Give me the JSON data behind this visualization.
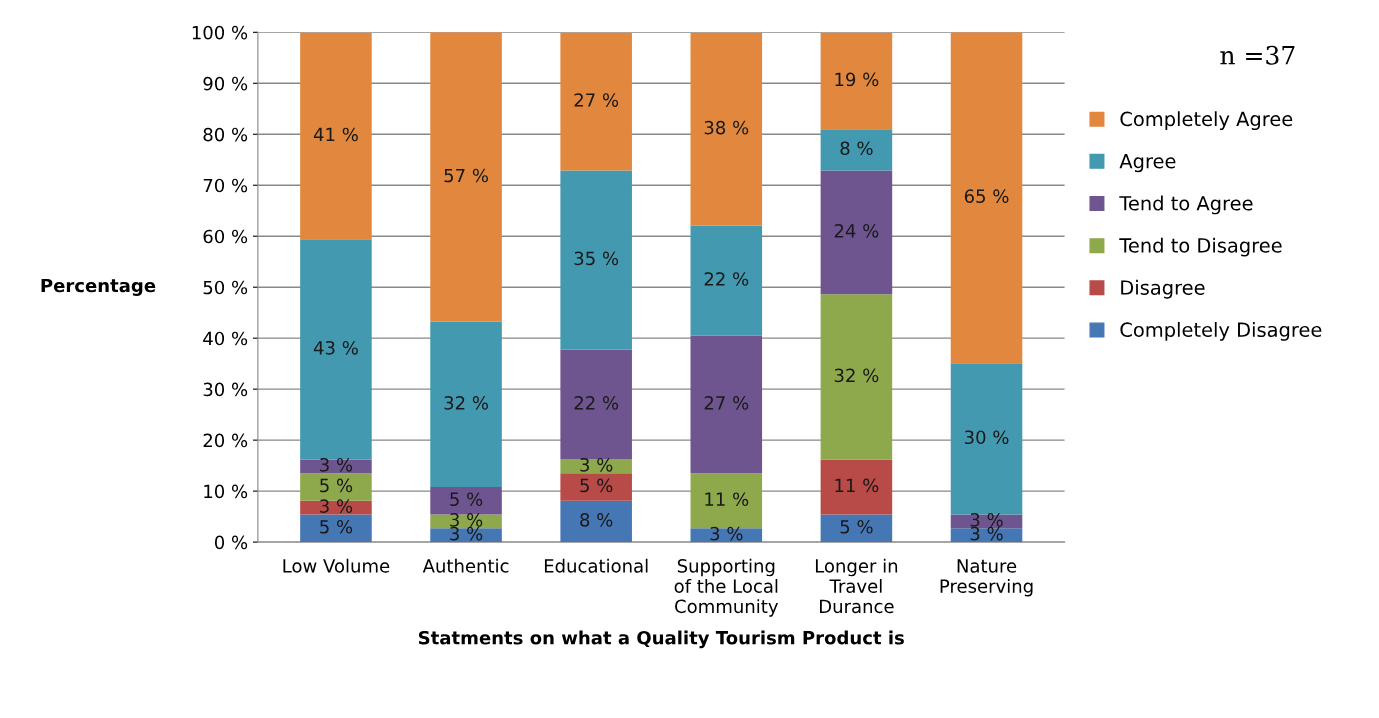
{
  "chart_data": {
    "type": "bar",
    "stacked": true,
    "xlabel": "Statments on what a Quality Tourism Product is",
    "ylabel": "Percentage",
    "categories": [
      "Low Volume",
      "Authentic",
      "Educational",
      "Supporting\nof the Local\nCommunity",
      "Longer in\nTravel\nDurance",
      "Nature\nPreserving"
    ],
    "series": [
      {
        "name": "Completely Disagree",
        "color": "#4677b5",
        "values": [
          5.4,
          2.7,
          8.1,
          2.7,
          5.4,
          2.7
        ],
        "value_labels": [
          "5 %",
          "3 %",
          "8 %",
          "3 %",
          "5 %",
          "3 %"
        ]
      },
      {
        "name": "Disagree",
        "color": "#b84a47",
        "values": [
          2.7,
          0,
          5.4,
          0,
          10.8,
          0
        ],
        "value_labels": [
          "3 %",
          null,
          "5 %",
          null,
          "11 %",
          null
        ]
      },
      {
        "name": "Tend to Disagree",
        "color": "#8ea84c",
        "values": [
          5.4,
          2.7,
          2.7,
          10.8,
          32.4,
          0
        ],
        "value_labels": [
          "5 %",
          "3 %",
          "3 %",
          "11 %",
          "32 %",
          null
        ]
      },
      {
        "name": "Tend to Agree",
        "color": "#6f5590",
        "values": [
          2.7,
          5.4,
          21.6,
          27.0,
          24.3,
          2.7
        ],
        "value_labels": [
          "3 %",
          "5 %",
          "22 %",
          "27 %",
          "24 %",
          "3 %"
        ]
      },
      {
        "name": "Agree",
        "color": "#4299b0",
        "values": [
          43.2,
          32.4,
          35.1,
          21.6,
          8.1,
          29.7
        ],
        "value_labels": [
          "43 %",
          "32 %",
          "35 %",
          "22 %",
          "8 %",
          "30 %"
        ]
      },
      {
        "name": "Completely Agree",
        "color": "#e2873e",
        "values": [
          40.5,
          56.8,
          27.0,
          37.8,
          18.9,
          64.9
        ],
        "value_labels": [
          "41 %",
          "57 %",
          "27 %",
          "38 %",
          "19 %",
          "65 %"
        ]
      }
    ],
    "ylim": [
      0,
      100
    ],
    "yticks": [
      {
        "value": 0,
        "label": "0 %"
      },
      {
        "value": 10,
        "label": "10 %"
      },
      {
        "value": 20,
        "label": "20 %"
      },
      {
        "value": 30,
        "label": "30 %"
      },
      {
        "value": 40,
        "label": "40 %"
      },
      {
        "value": 50,
        "label": "50 %"
      },
      {
        "value": 60,
        "label": "60 %"
      },
      {
        "value": 70,
        "label": "70 %"
      },
      {
        "value": 80,
        "label": "80 %"
      },
      {
        "value": 90,
        "label": "90 %"
      },
      {
        "value": 100,
        "label": "100 %"
      }
    ],
    "grid": "y",
    "legend": "right",
    "annotations": [
      "n =37"
    ]
  }
}
